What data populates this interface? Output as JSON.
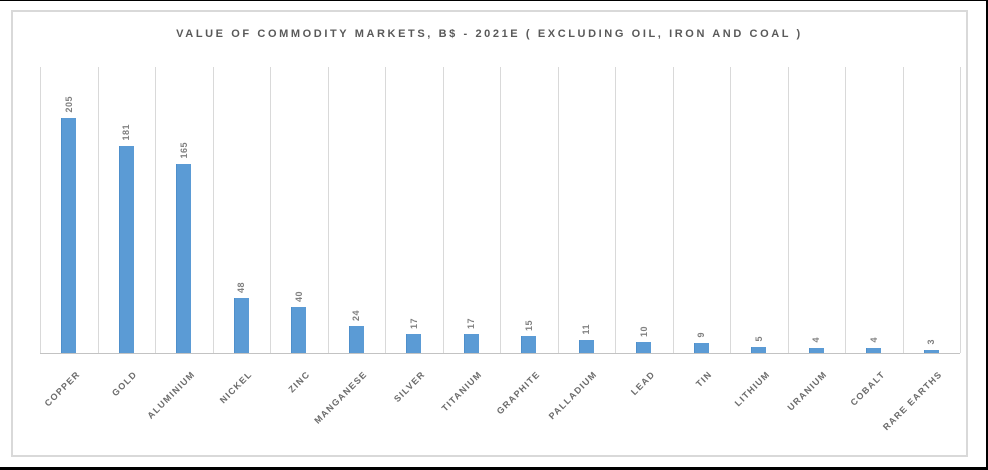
{
  "chart_data": {
    "type": "bar",
    "title": "VALUE OF COMMODITY MARKETS, B$ - 2021E ( EXCLUDING OIL, IRON AND COAL )",
    "categories": [
      "COPPER",
      "GOLD",
      "ALUMINIUM",
      "NICKEL",
      "ZINC",
      "MANGANESE",
      "SILVER",
      "TITANIUM",
      "GRAPHITE",
      "PALLADIUM",
      "LEAD",
      "TIN",
      "LITHIUM",
      "URANIUM",
      "COBALT",
      "RARE EARTHS"
    ],
    "values": [
      205,
      181,
      165,
      48,
      40,
      24,
      17,
      17,
      15,
      11,
      10,
      9,
      5,
      4,
      4,
      3
    ],
    "xlabel": "",
    "ylabel": "",
    "ylim": [
      0,
      250
    ],
    "y_axis_tick_labels_visible": false,
    "grid": "vertical lines at category boundaries",
    "legend": "none",
    "data_labels": "value shown rotated 90 degrees above each bar",
    "category_labels": "rotated 45 degrees, uppercase"
  },
  "colors": {
    "bar": "#5B9BD5",
    "bar_edge": "#4E8FCB",
    "gridline": "#D9D9D9",
    "axis_line": "#C3C3C3",
    "title": "#595959",
    "value_label": "#808080",
    "category_label": "#6B6B6B",
    "chart_border": "#D9D9D9",
    "outer_border": "#000000",
    "background": "#FFFFFF"
  }
}
